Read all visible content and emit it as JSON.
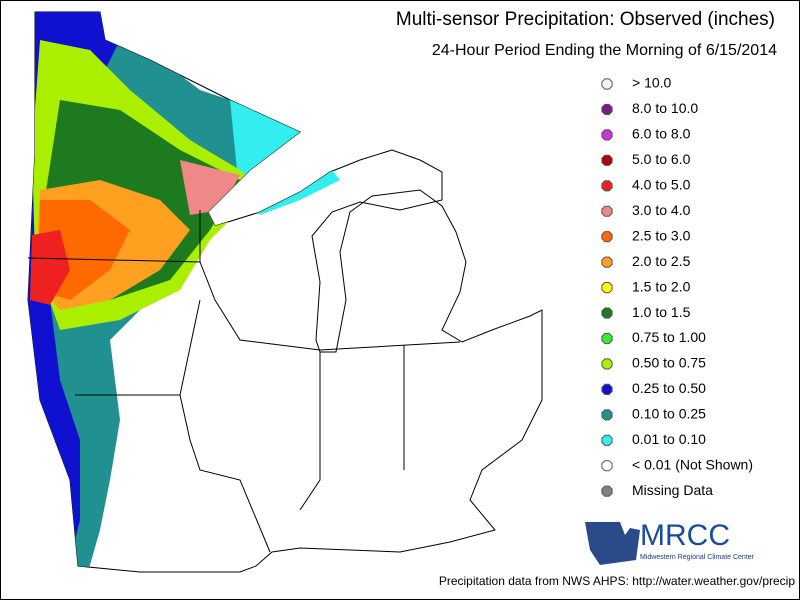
{
  "header": {
    "title": "Multi-sensor Precipitation:  Observed (inches)",
    "subtitle": "24-Hour Period Ending the Morning of 6/15/2014"
  },
  "legend": {
    "items": [
      {
        "label": "> 10.0",
        "color": "#f4f4f4"
      },
      {
        "label": "8.0 to 10.0",
        "color": "#7a1a8a"
      },
      {
        "label": "6.0 to 8.0",
        "color": "#cc33dd"
      },
      {
        "label": "5.0 to 6.0",
        "color": "#b00000"
      },
      {
        "label": "4.0 to 5.0",
        "color": "#ee2020"
      },
      {
        "label": "3.0 to 4.0",
        "color": "#f08888"
      },
      {
        "label": "2.5 to 3.0",
        "color": "#ff6a00"
      },
      {
        "label": "2.0 to 2.5",
        "color": "#ffa020"
      },
      {
        "label": "1.5 to 2.0",
        "color": "#ffff00"
      },
      {
        "label": "1.0 to 1.5",
        "color": "#1e7a1e"
      },
      {
        "label": "0.75 to 1.00",
        "color": "#33ee33"
      },
      {
        "label": "0.50 to 0.75",
        "color": "#aaee00"
      },
      {
        "label": "0.25 to 0.50",
        "color": "#1010d0"
      },
      {
        "label": "0.10 to 0.25",
        "color": "#209090"
      },
      {
        "label": "0.01 to 0.10",
        "color": "#33eeee"
      },
      {
        "label": "< 0.01 (Not Shown)",
        "color": "#ffffff"
      },
      {
        "label": "Missing Data",
        "color": "#808080"
      }
    ]
  },
  "logo": {
    "text": "MRCC",
    "subtitle": "Midwestern Regional Climate Center"
  },
  "footer": {
    "source": "Precipitation data from NWS AHPS: http://water.weather.gov/precip"
  }
}
